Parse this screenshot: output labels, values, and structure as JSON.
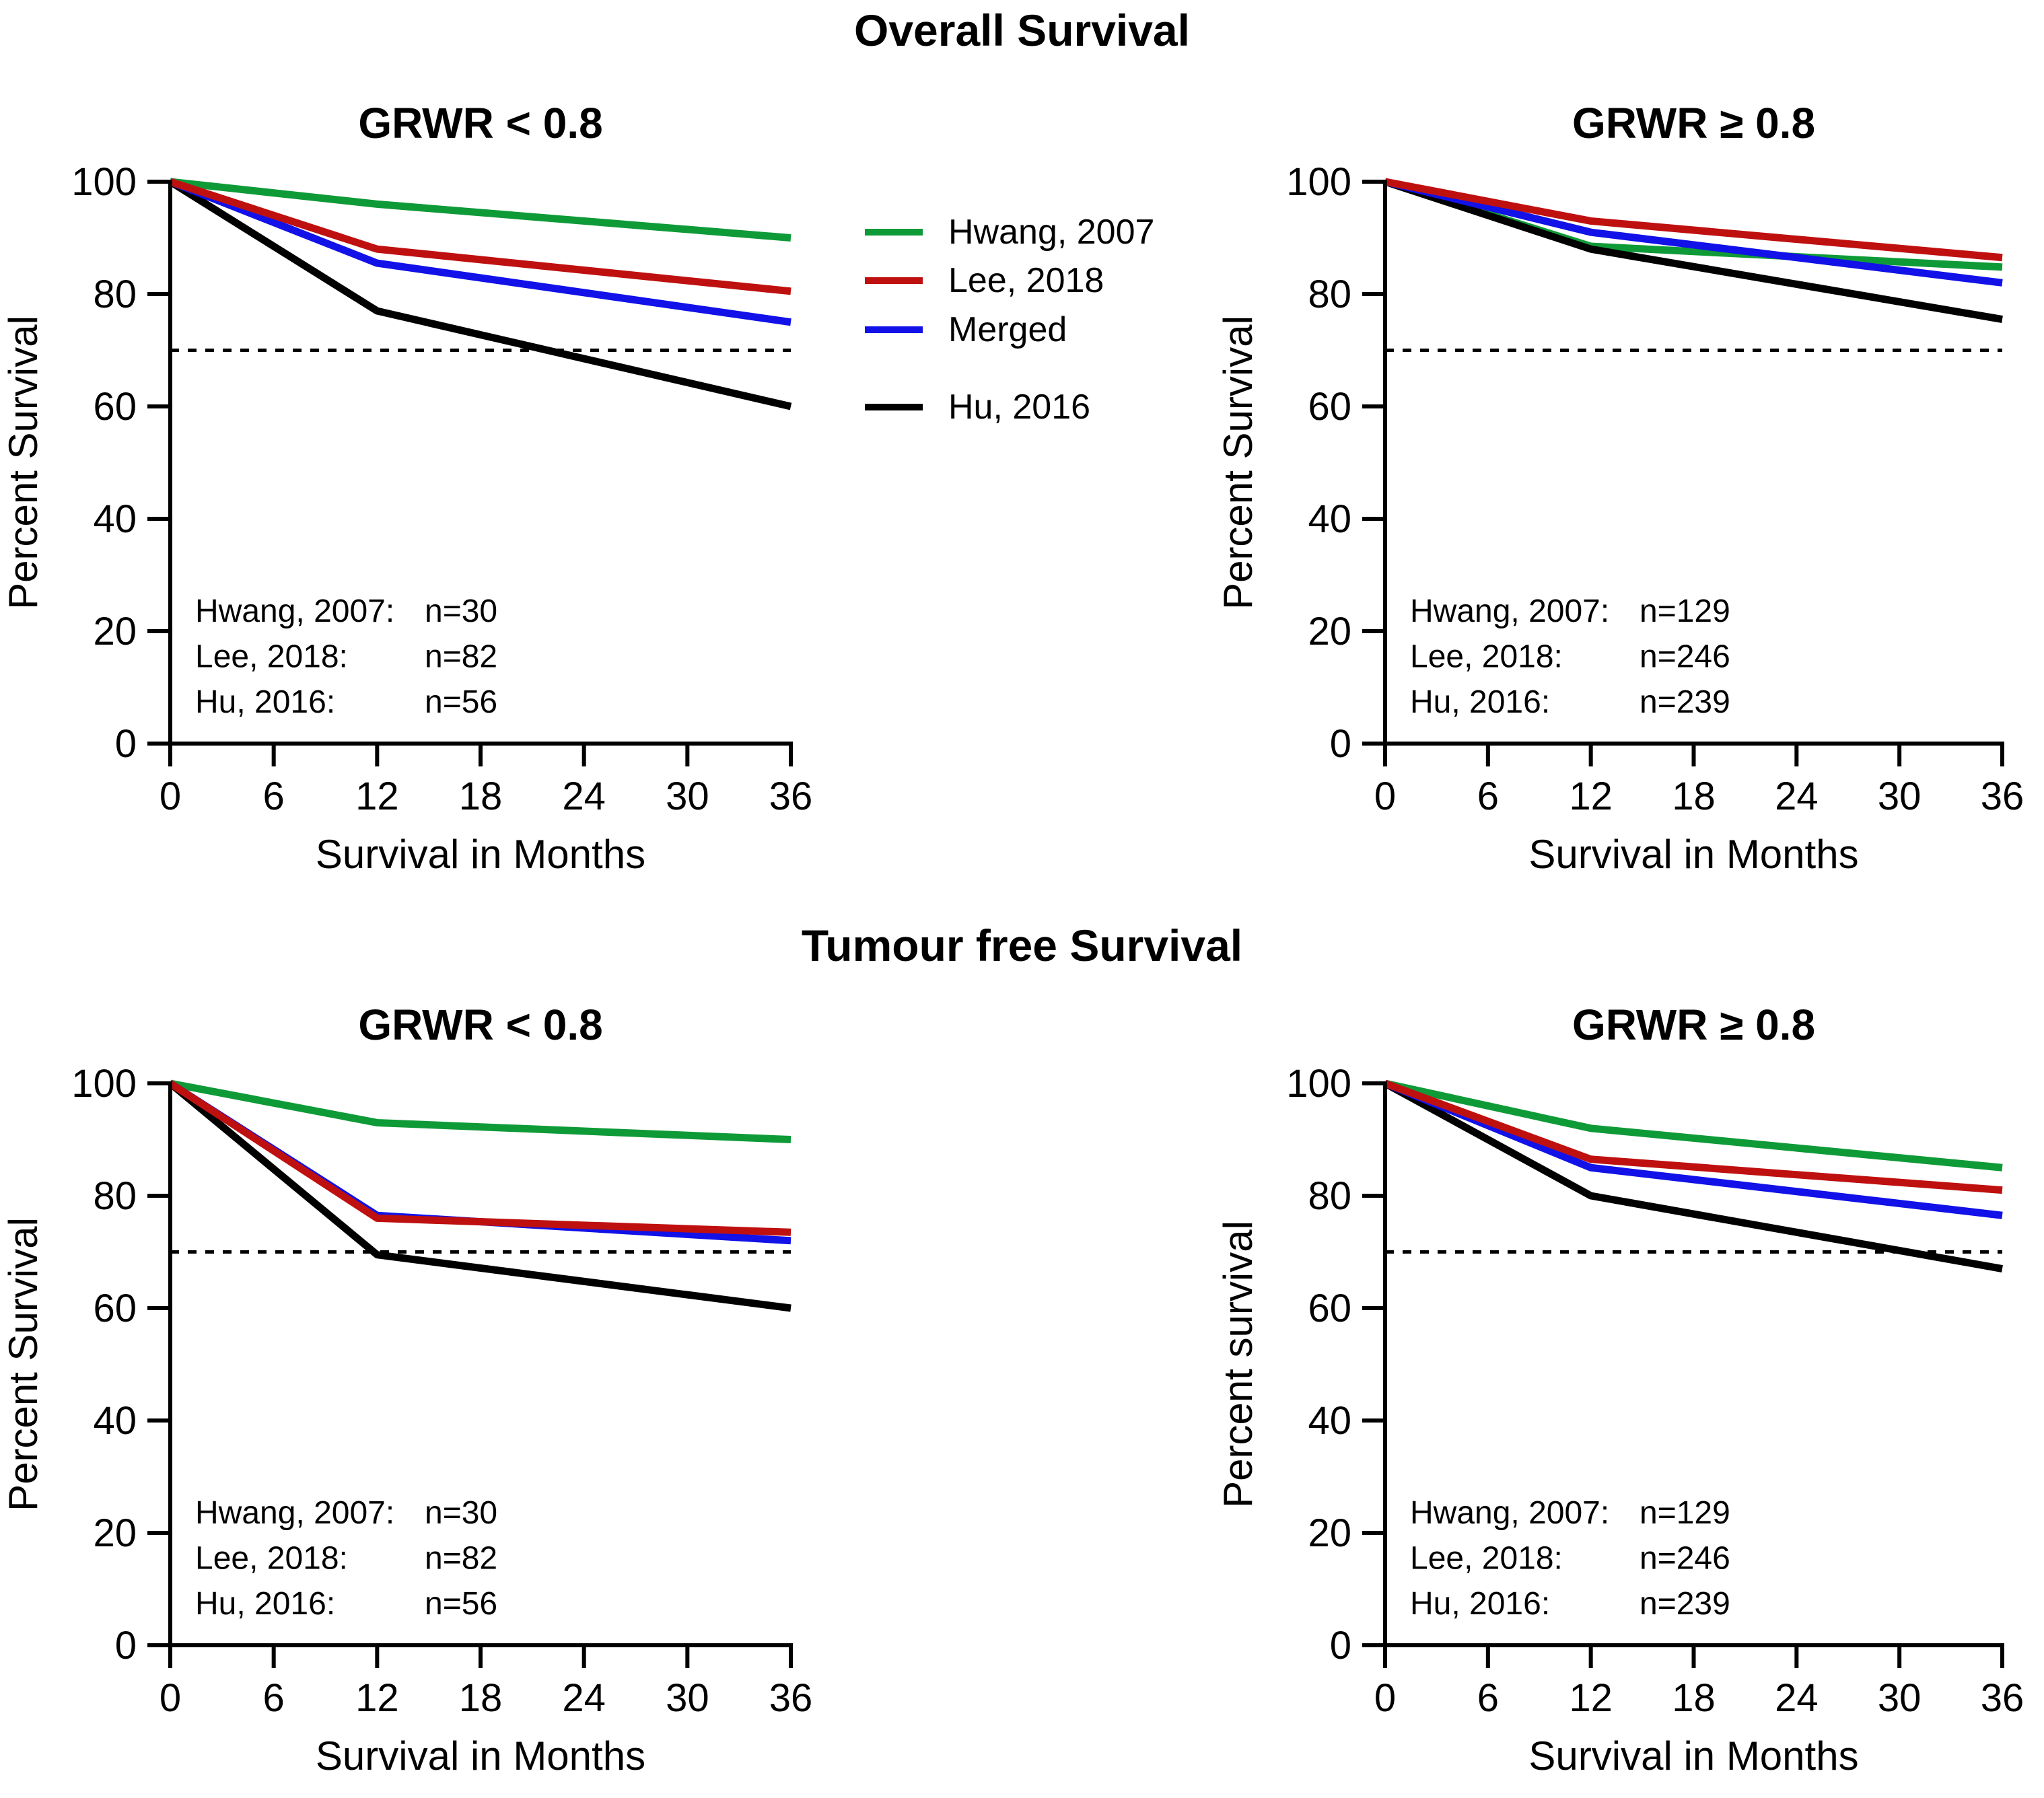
{
  "figure": {
    "sections": [
      {
        "title": "Overall Survival"
      },
      {
        "title": "Tumour free Survival"
      }
    ],
    "legend": {
      "items": [
        {
          "label": "Hwang, 2007",
          "color": "#0f9a38"
        },
        {
          "label": "Lee, 2018",
          "color": "#bf1010"
        },
        {
          "label": "Merged",
          "color": "#1111e8"
        },
        {
          "label": "Hu, 2016",
          "color": "#000000"
        }
      ]
    },
    "colors": {
      "axis": "#000000",
      "reference": "#000000",
      "background": "#ffffff"
    }
  },
  "chart_data": [
    {
      "type": "line",
      "section": "Overall Survival",
      "title": "GRWR < 0.8",
      "xlabel": "Survival in Months",
      "ylabel": "Percent Survival",
      "x_ticks": [
        0,
        6,
        12,
        18,
        24,
        30,
        36
      ],
      "y_ticks": [
        0,
        20,
        40,
        60,
        80,
        100
      ],
      "xlim": [
        0,
        36
      ],
      "ylim": [
        0,
        100
      ],
      "grid": false,
      "reference_line_y": 70,
      "series": [
        {
          "name": "Hwang, 2007",
          "color": "#0f9a38",
          "points": [
            [
              0,
              100
            ],
            [
              12,
              96
            ],
            [
              36,
              90
            ]
          ]
        },
        {
          "name": "Lee, 2018",
          "color": "#bf1010",
          "points": [
            [
              0,
              100
            ],
            [
              12,
              88
            ],
            [
              36,
              80.5
            ]
          ]
        },
        {
          "name": "Merged",
          "color": "#1111e8",
          "points": [
            [
              0,
              100
            ],
            [
              12,
              85.5
            ],
            [
              36,
              75
            ]
          ]
        },
        {
          "name": "Hu, 2016",
          "color": "#000000",
          "points": [
            [
              0,
              100
            ],
            [
              12,
              77
            ],
            [
              36,
              60
            ]
          ]
        }
      ],
      "annotations": [
        {
          "label": "Hwang, 2007:",
          "value": "n=30"
        },
        {
          "label": "Lee, 2018:",
          "value": "n=82"
        },
        {
          "label": "Hu, 2016:",
          "value": "n=56"
        }
      ]
    },
    {
      "type": "line",
      "section": "Overall Survival",
      "title": "GRWR ≥ 0.8",
      "xlabel": "Survival in Months",
      "ylabel": "Percent Survival",
      "x_ticks": [
        0,
        6,
        12,
        18,
        24,
        30,
        36
      ],
      "y_ticks": [
        0,
        20,
        40,
        60,
        80,
        100
      ],
      "xlim": [
        0,
        36
      ],
      "ylim": [
        0,
        100
      ],
      "grid": false,
      "reference_line_y": 70,
      "series": [
        {
          "name": "Hwang, 2007",
          "color": "#0f9a38",
          "points": [
            [
              0,
              100
            ],
            [
              12,
              88.5
            ],
            [
              36,
              84.8
            ]
          ]
        },
        {
          "name": "Lee, 2018",
          "color": "#bf1010",
          "points": [
            [
              0,
              100
            ],
            [
              12,
              93
            ],
            [
              36,
              86.5
            ]
          ]
        },
        {
          "name": "Merged",
          "color": "#1111e8",
          "points": [
            [
              0,
              100
            ],
            [
              12,
              91
            ],
            [
              36,
              82
            ]
          ]
        },
        {
          "name": "Hu, 2016",
          "color": "#000000",
          "points": [
            [
              0,
              100
            ],
            [
              12,
              88
            ],
            [
              36,
              75.5
            ]
          ]
        }
      ],
      "annotations": [
        {
          "label": "Hwang, 2007:",
          "value": "n=129"
        },
        {
          "label": "Lee, 2018:",
          "value": "n=246"
        },
        {
          "label": "Hu, 2016:",
          "value": "n=239"
        }
      ]
    },
    {
      "type": "line",
      "section": "Tumour free Survival",
      "title": "GRWR < 0.8",
      "xlabel": "Survival in Months",
      "ylabel": "Percent Survival",
      "x_ticks": [
        0,
        6,
        12,
        18,
        24,
        30,
        36
      ],
      "y_ticks": [
        0,
        20,
        40,
        60,
        80,
        100
      ],
      "xlim": [
        0,
        36
      ],
      "ylim": [
        0,
        100
      ],
      "grid": false,
      "reference_line_y": 70,
      "series": [
        {
          "name": "Hwang, 2007",
          "color": "#0f9a38",
          "points": [
            [
              0,
              100
            ],
            [
              12,
              93
            ],
            [
              36,
              90
            ]
          ]
        },
        {
          "name": "Lee, 2018",
          "color": "#bf1010",
          "points": [
            [
              0,
              100
            ],
            [
              12,
              76
            ],
            [
              36,
              73.5
            ]
          ]
        },
        {
          "name": "Merged",
          "color": "#1111e8",
          "points": [
            [
              0,
              100
            ],
            [
              12,
              76.5
            ],
            [
              36,
              72
            ]
          ]
        },
        {
          "name": "Hu, 2016",
          "color": "#000000",
          "points": [
            [
              0,
              100
            ],
            [
              12,
              69.5
            ],
            [
              36,
              60
            ]
          ]
        }
      ],
      "annotations": [
        {
          "label": "Hwang, 2007:",
          "value": "n=30"
        },
        {
          "label": "Lee, 2018:",
          "value": "n=82"
        },
        {
          "label": "Hu, 2016:",
          "value": "n=56"
        }
      ]
    },
    {
      "type": "line",
      "section": "Tumour free Survival",
      "title": "GRWR ≥ 0.8",
      "xlabel": "Survival in Months",
      "ylabel": "Percent survival",
      "x_ticks": [
        0,
        6,
        12,
        18,
        24,
        30,
        36
      ],
      "y_ticks": [
        0,
        20,
        40,
        60,
        80,
        100
      ],
      "xlim": [
        0,
        36
      ],
      "ylim": [
        0,
        100
      ],
      "grid": false,
      "reference_line_y": 70,
      "series": [
        {
          "name": "Hwang, 2007",
          "color": "#0f9a38",
          "points": [
            [
              0,
              100
            ],
            [
              12,
              92
            ],
            [
              36,
              85
            ]
          ]
        },
        {
          "name": "Lee, 2018",
          "color": "#bf1010",
          "points": [
            [
              0,
              100
            ],
            [
              12,
              86.5
            ],
            [
              36,
              81
            ]
          ]
        },
        {
          "name": "Merged",
          "color": "#1111e8",
          "points": [
            [
              0,
              100
            ],
            [
              12,
              85
            ],
            [
              36,
              76.5
            ]
          ]
        },
        {
          "name": "Hu, 2016",
          "color": "#000000",
          "points": [
            [
              0,
              100
            ],
            [
              12,
              80
            ],
            [
              36,
              67
            ]
          ]
        }
      ],
      "annotations": [
        {
          "label": "Hwang, 2007:",
          "value": "n=129"
        },
        {
          "label": "Lee, 2018:",
          "value": "n=246"
        },
        {
          "label": "Hu, 2016:",
          "value": "n=239"
        }
      ]
    }
  ]
}
